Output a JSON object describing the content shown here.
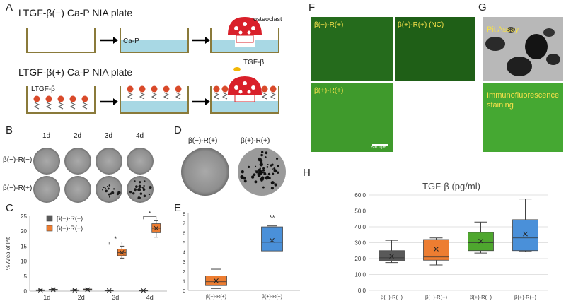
{
  "panels": {
    "a": "A",
    "b": "B",
    "c": "C",
    "d": "D",
    "e": "E",
    "f": "F",
    "g": "G",
    "h": "H"
  },
  "panel_a": {
    "title1": "LTGF-β(−) Ca-P NIA plate",
    "title2": "LTGF-β(+) Ca-P NIA plate",
    "osteoclast": "osteoclast",
    "cap": "Ca-P",
    "tgf": "TGF-β",
    "ltgf": "LTGF-β"
  },
  "panel_b": {
    "days": [
      "1d",
      "2d",
      "3d",
      "4d"
    ],
    "rows": [
      "β(−)-R(−)",
      "β(−)-R(+)"
    ]
  },
  "panel_d": {
    "labels": [
      "β(−)-R(+)",
      "β(+)-R(+)"
    ]
  },
  "panel_f": {
    "labels": [
      "β(−)-R(+)",
      "β(+)-R(+) (NC)",
      "β(+)-R(+)"
    ],
    "scale": "500.0 µm"
  },
  "panel_g": {
    "labels": [
      "Pit Assay",
      "Immunofluorescence staining"
    ]
  },
  "colors": {
    "gray": "#595959",
    "orange": "#ed7d31",
    "green": "#4ea72e",
    "blue": "#4a90d9",
    "fluor": "#2f7a24"
  },
  "chart_data": [
    {
      "type": "box",
      "panel": "C",
      "ylabel": "% Area of Pit",
      "categories": [
        "1d",
        "2d",
        "3d",
        "4d"
      ],
      "ylim": [
        0,
        25
      ],
      "yticks": [
        "0",
        "5",
        "10",
        "15",
        "20",
        "25"
      ],
      "series": [
        {
          "name": "β(−)-R(−)",
          "color": "gray",
          "boxes": [
            {
              "min": 0.1,
              "q1": 0.2,
              "med": 0.3,
              "q3": 0.4,
              "max": 0.6,
              "mean": 0.3
            },
            {
              "min": 0.1,
              "q1": 0.2,
              "med": 0.3,
              "q3": 0.4,
              "max": 0.6,
              "mean": 0.3
            },
            {
              "min": 0.0,
              "q1": 0.1,
              "med": 0.2,
              "q3": 0.3,
              "max": 0.4,
              "mean": 0.2
            },
            {
              "min": 0.0,
              "q1": 0.1,
              "med": 0.2,
              "q3": 0.3,
              "max": 0.4,
              "mean": 0.2
            }
          ]
        },
        {
          "name": "β(−)-R(+)",
          "color": "orange",
          "boxes": [
            {
              "min": 0.2,
              "q1": 0.3,
              "med": 0.5,
              "q3": 0.6,
              "max": 0.8,
              "mean": 0.5
            },
            {
              "min": 0.2,
              "q1": 0.3,
              "med": 0.5,
              "q3": 0.7,
              "max": 1.0,
              "mean": 0.5
            },
            {
              "min": 11.0,
              "q1": 11.8,
              "med": 12.8,
              "q3": 14.0,
              "max": 15.0,
              "mean": 12.9
            },
            {
              "min": 18.0,
              "q1": 19.5,
              "med": 21.0,
              "q3": 22.5,
              "max": 23.5,
              "mean": 21.0
            }
          ]
        }
      ],
      "annotations": [
        "*",
        "*"
      ]
    },
    {
      "type": "box",
      "panel": "E",
      "categories": [
        "β(−)-R(+)",
        "β(+)-R(+)"
      ],
      "ylim": [
        0,
        8
      ],
      "yticks": [
        "0",
        "1",
        "2",
        "3",
        "4",
        "5",
        "6",
        "7",
        "8"
      ],
      "boxes": [
        {
          "color": "orange",
          "min": 0.2,
          "q1": 0.5,
          "med": 0.9,
          "q3": 1.5,
          "max": 2.2,
          "mean": 1.0
        },
        {
          "color": "blue",
          "min": 4.0,
          "q1": 4.1,
          "med": 5.0,
          "q3": 6.6,
          "max": 6.7,
          "mean": 5.2
        }
      ],
      "annotation": "**"
    },
    {
      "type": "box",
      "panel": "H",
      "title": "TGF-β (pg/ml)",
      "categories": [
        "β(−)-R(−)",
        "β(−)-R(+)",
        "β(+)-R(−)",
        "β(+)-R(+)"
      ],
      "ylim": [
        0,
        60
      ],
      "yticks": [
        "0.0",
        "10.0",
        "20.0",
        "30.0",
        "40.0",
        "50.0",
        "60.0"
      ],
      "boxes": [
        {
          "color": "gray",
          "min": 17.5,
          "q1": 18.5,
          "med": 20.5,
          "q3": 25.0,
          "max": 31.5,
          "mean": 21.5
        },
        {
          "color": "orange",
          "min": 16.0,
          "q1": 19.0,
          "med": 21.0,
          "q3": 32.0,
          "max": 33.0,
          "mean": 26.0
        },
        {
          "color": "green",
          "min": 23.5,
          "q1": 25.0,
          "med": 30.0,
          "q3": 36.5,
          "max": 43.0,
          "mean": 31.0
        },
        {
          "color": "blue",
          "min": 24.5,
          "q1": 25.0,
          "med": 33.0,
          "q3": 44.5,
          "max": 57.5,
          "mean": 35.5
        }
      ]
    }
  ]
}
